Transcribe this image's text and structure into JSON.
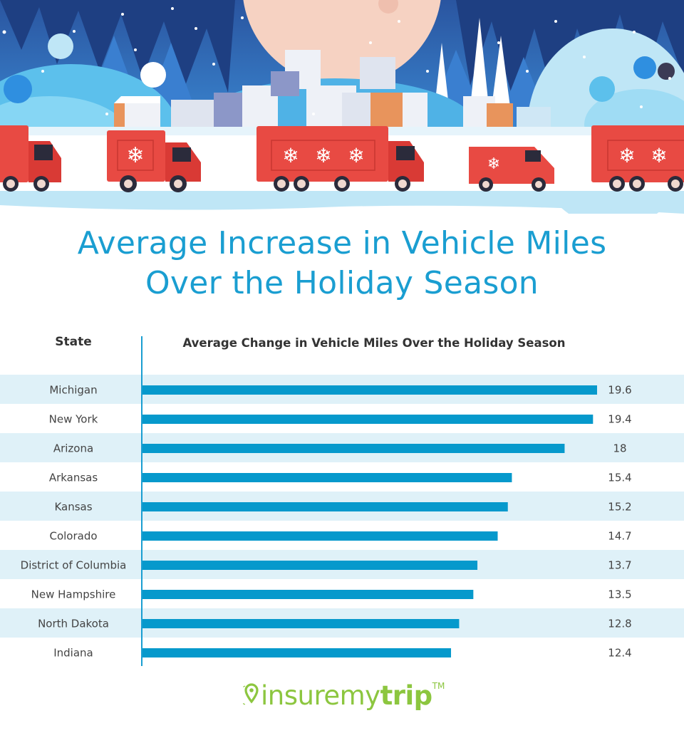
{
  "header": {
    "title_line1": "Average Increase in Vehicle Miles",
    "title_line2": "Over the Holiday Season"
  },
  "banner": {
    "description": "Winter village illustration with red delivery trucks decorated with snowflakes",
    "colors": {
      "sky": "#1f4a8f",
      "moon": "#f6d2c2",
      "truck": "#e84a43",
      "snow": "#ffffff",
      "hill": "#6fd0f2"
    }
  },
  "table": {
    "col_state": "State",
    "col_value": "Average Change in Vehicle Miles Over the Holiday Season"
  },
  "colors": {
    "bar": "#0699cc",
    "stripe": "#dff1f8",
    "title": "#1a9ed1",
    "logo": "#8cc63f"
  },
  "chart_data": {
    "type": "bar",
    "orientation": "horizontal",
    "title": "Average Increase in Vehicle Miles Over the Holiday Season",
    "xlabel": "Average Change in Vehicle Miles Over the Holiday Season",
    "ylabel": "State",
    "categories": [
      "Michigan",
      "New York",
      "Arizona",
      "Arkansas",
      "Kansas",
      "Colorado",
      "District of Columbia",
      "New Hampshire",
      "North Dakota",
      "Indiana"
    ],
    "values": [
      19.6,
      19.4,
      18,
      15.4,
      15.2,
      14.7,
      13.7,
      13.5,
      12.8,
      12.4
    ],
    "value_labels": [
      "19.6",
      "19.4",
      "18",
      "15.4",
      "15.2",
      "14.7",
      "13.7",
      "13.5",
      "12.8",
      "12.4"
    ],
    "grid": false,
    "legend": "none"
  },
  "logo": {
    "text_regular": "insuremy",
    "text_bold": "trip",
    "trademark": "TM"
  }
}
